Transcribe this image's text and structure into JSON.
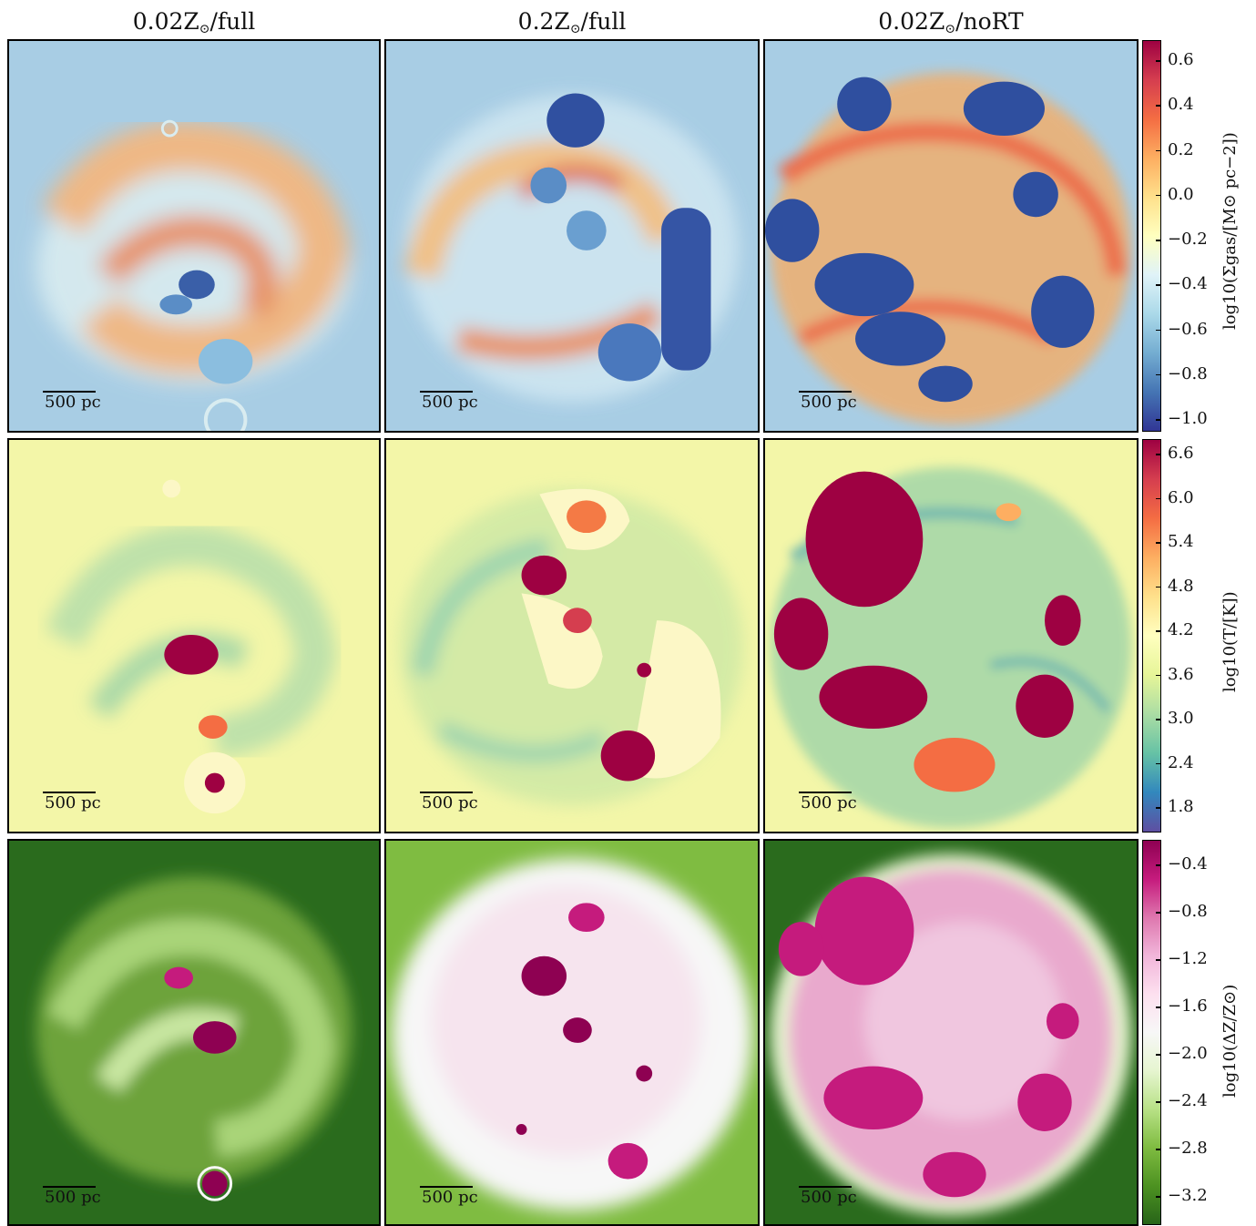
{
  "columns": [
    {
      "prefix": "0.02Z",
      "suffix": "/full"
    },
    {
      "prefix": "0.2Z",
      "suffix": "/full"
    },
    {
      "prefix": "0.02Z",
      "suffix": "/noRT"
    }
  ],
  "sun_symbol": "⊙",
  "scale_bar_label": "500 pc",
  "colorbars": [
    {
      "label": "log10(Σgas/[M⊙ pc−2])",
      "ticks": [
        "0.6",
        "0.4",
        "0.2",
        "0.0",
        "−0.2",
        "−0.4",
        "−0.6",
        "−0.8",
        "−1.0"
      ],
      "colors": [
        "#9e0142",
        "#d53e4f",
        "#f46d43",
        "#fdae61",
        "#fee08b",
        "#ffffbf",
        "#e0f3f8",
        "#abd9e9",
        "#74add1",
        "#4575b4",
        "#313695"
      ]
    },
    {
      "label": "log10(T/[K])",
      "ticks": [
        "6.6",
        "6.0",
        "5.4",
        "4.8",
        "4.2",
        "3.6",
        "3.0",
        "2.4",
        "1.8"
      ],
      "colors": [
        "#9e0142",
        "#d53e4f",
        "#f46d43",
        "#fdae61",
        "#fee08b",
        "#ffffbf",
        "#e6f598",
        "#abdda4",
        "#66c2a5",
        "#3288bd",
        "#5e4fa2"
      ]
    },
    {
      "label": "log10(ΔZ/Z⊙)",
      "ticks": [
        "−0.4",
        "−0.8",
        "−1.2",
        "−1.6",
        "−2.0",
        "−2.4",
        "−2.8",
        "−3.2"
      ],
      "colors": [
        "#8e0152",
        "#c51b7d",
        "#de77ae",
        "#f1b6da",
        "#fde0ef",
        "#f7f7f7",
        "#e6f5d0",
        "#b8e186",
        "#7fbc41",
        "#4d9221",
        "#276419"
      ]
    }
  ],
  "panel_colors": {
    "row0_bg": "#a8cde4",
    "row0_arm": "#f5a264",
    "row0_bubble": "#3a5fa8",
    "row1_bg": "#f3f6a8",
    "row1_arm": "#9fd4a8",
    "row1_hot": "#9e0142",
    "row1_warm": "#f47a45",
    "row1_halo": "#fcf7c6",
    "row2_bg": "#2a6b1d",
    "row2_arm": "#8fc459",
    "row2_inner": "#f7f2f5",
    "row2_pink": "#c51b7d"
  }
}
